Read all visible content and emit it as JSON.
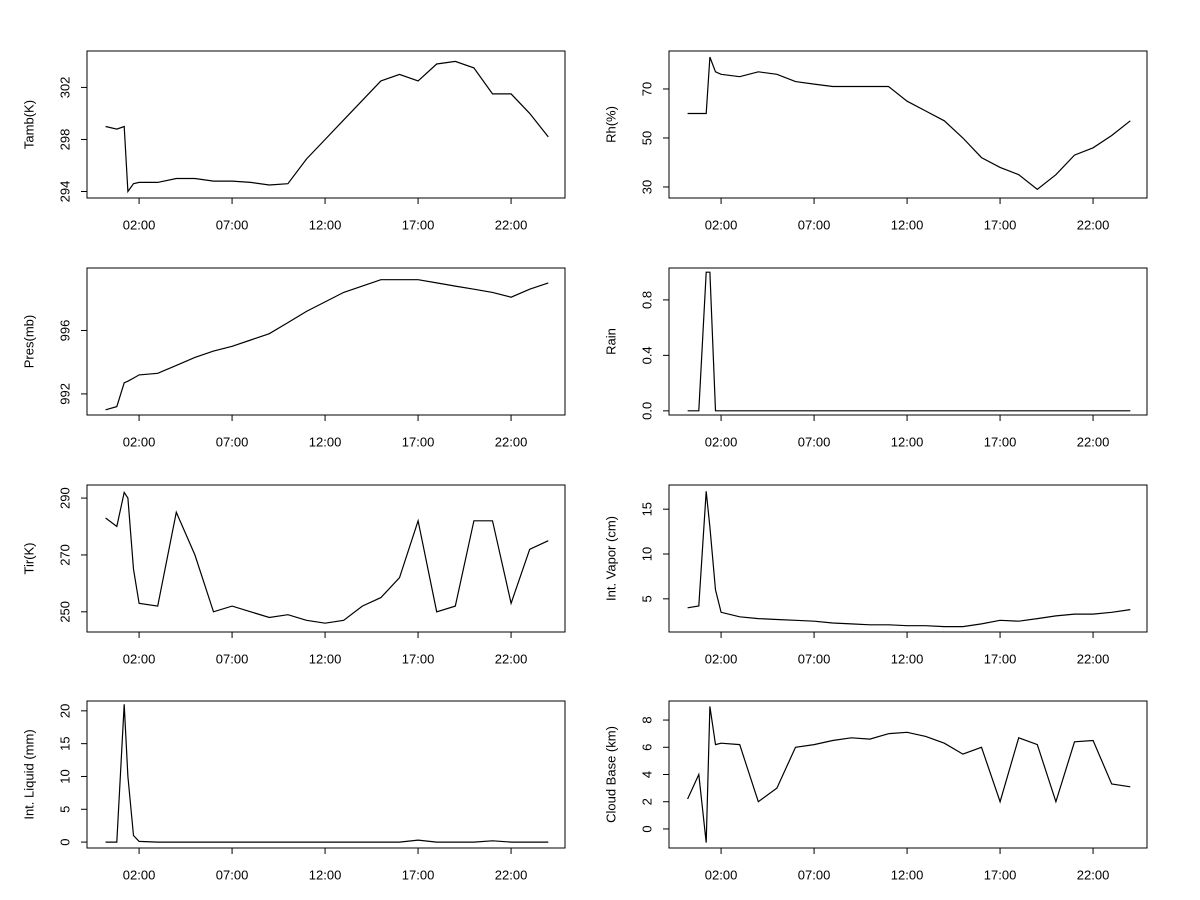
{
  "chart_data": [
    {
      "type": "line",
      "ylabel": "Tamb(K)",
      "color": "#000000",
      "x": [
        0.2,
        0.8,
        1.2,
        1.4,
        1.7,
        2,
        3,
        4,
        5,
        6,
        7,
        8,
        9,
        10,
        11,
        12,
        13,
        14,
        15,
        16,
        17,
        18,
        19,
        20,
        21,
        22,
        23,
        24
      ],
      "values": [
        299,
        298.8,
        299,
        294,
        294.6,
        294.7,
        294.7,
        295,
        295,
        294.8,
        294.8,
        294.7,
        294.5,
        294.6,
        296.5,
        298,
        299.5,
        301,
        302.5,
        303,
        302.5,
        303.8,
        304,
        303.5,
        301.5,
        301.5,
        300,
        298.2
      ],
      "xlim": [
        -0.8,
        24.9
      ],
      "ylim": [
        293.5,
        304.8
      ],
      "xticks": [
        {
          "value": 2,
          "label": "02:00"
        },
        {
          "value": 7,
          "label": "07:00"
        },
        {
          "value": 12,
          "label": "12:00"
        },
        {
          "value": 17,
          "label": "17:00"
        },
        {
          "value": 22,
          "label": "22:00"
        }
      ],
      "yticks": [
        294,
        298,
        302
      ]
    },
    {
      "type": "line",
      "ylabel": "Rh(%)",
      "color": "#000000",
      "x": [
        0.2,
        0.8,
        1.2,
        1.4,
        1.7,
        2,
        3,
        4,
        5,
        6,
        7,
        8,
        9,
        10,
        11,
        12,
        13,
        14,
        15,
        16,
        17,
        18,
        19,
        20,
        21,
        22,
        23,
        24
      ],
      "values": [
        60,
        60,
        60,
        83,
        77,
        76,
        75,
        77,
        76,
        73,
        72,
        71,
        71,
        71,
        71,
        65,
        61,
        57,
        50,
        42,
        38,
        35,
        29,
        35,
        43,
        46,
        51,
        57
      ],
      "xlim": [
        -0.8,
        24.9
      ],
      "ylim": [
        25.5,
        85.5
      ],
      "xticks": [
        {
          "value": 2,
          "label": "02:00"
        },
        {
          "value": 7,
          "label": "07:00"
        },
        {
          "value": 12,
          "label": "12:00"
        },
        {
          "value": 17,
          "label": "17:00"
        },
        {
          "value": 22,
          "label": "22:00"
        }
      ],
      "yticks": [
        30,
        50,
        70
      ]
    },
    {
      "type": "line",
      "ylabel": "Pres(mb)",
      "color": "#000000",
      "x": [
        0.2,
        0.8,
        1.2,
        1.4,
        1.7,
        2,
        3,
        4,
        5,
        6,
        7,
        8,
        9,
        10,
        11,
        12,
        13,
        14,
        15,
        16,
        17,
        18,
        19,
        20,
        21,
        22,
        23,
        24
      ],
      "values": [
        991,
        991.2,
        992.7,
        992.8,
        993,
        993.2,
        993.3,
        993.8,
        994.3,
        994.7,
        995,
        995.4,
        995.8,
        996.5,
        997.2,
        997.8,
        998.4,
        998.8,
        999.2,
        999.2,
        999.2,
        999,
        998.8,
        998.6,
        998.4,
        998.1,
        998.6,
        999
      ],
      "xlim": [
        -0.8,
        24.9
      ],
      "ylim": [
        990.67,
        999.94
      ],
      "xticks": [
        {
          "value": 2,
          "label": "02:00"
        },
        {
          "value": 7,
          "label": "07:00"
        },
        {
          "value": 12,
          "label": "12:00"
        },
        {
          "value": 17,
          "label": "17:00"
        },
        {
          "value": 22,
          "label": "22:00"
        }
      ],
      "yticks": [
        992,
        996
      ]
    },
    {
      "type": "line",
      "ylabel": "Rain",
      "color": "#000000",
      "x": [
        0.2,
        0.8,
        1.2,
        1.4,
        1.7,
        2,
        3,
        4,
        5,
        6,
        7,
        8,
        9,
        10,
        11,
        12,
        13,
        14,
        15,
        16,
        17,
        18,
        19,
        20,
        21,
        22,
        23,
        24
      ],
      "values": [
        0,
        0,
        1,
        1,
        0,
        0,
        0,
        0,
        0,
        0,
        0,
        0,
        0,
        0,
        0,
        0,
        0,
        0,
        0,
        0,
        0,
        0,
        0,
        0,
        0,
        0,
        0,
        0
      ],
      "xlim": [
        -0.8,
        24.9
      ],
      "ylim": [
        -0.03,
        1.03
      ],
      "xticks": [
        {
          "value": 2,
          "label": "02:00"
        },
        {
          "value": 7,
          "label": "07:00"
        },
        {
          "value": 12,
          "label": "12:00"
        },
        {
          "value": 17,
          "label": "17:00"
        },
        {
          "value": 22,
          "label": "22:00"
        }
      ],
      "yticks": [
        {
          "value": 0,
          "label": "0.0"
        },
        {
          "value": 0.4,
          "label": "0.4"
        },
        {
          "value": 0.8,
          "label": "0.8"
        }
      ]
    },
    {
      "type": "line",
      "ylabel": "Tir(K)",
      "color": "#000000",
      "x": [
        0.2,
        0.8,
        1.2,
        1.4,
        1.7,
        2,
        3,
        4,
        5,
        6,
        7,
        8,
        9,
        10,
        11,
        12,
        13,
        14,
        15,
        16,
        17,
        18,
        19,
        20,
        21,
        22,
        23,
        24
      ],
      "values": [
        283,
        280,
        292,
        290,
        265,
        253,
        252,
        285,
        270,
        250,
        252,
        250,
        248,
        249,
        247,
        246,
        247,
        252,
        255,
        262,
        282,
        250,
        252,
        282,
        282,
        253,
        272,
        275
      ],
      "xlim": [
        -0.8,
        24.9
      ],
      "ylim": [
        242.9,
        294.6
      ],
      "xticks": [
        {
          "value": 2,
          "label": "02:00"
        },
        {
          "value": 7,
          "label": "07:00"
        },
        {
          "value": 12,
          "label": "12:00"
        },
        {
          "value": 17,
          "label": "17:00"
        },
        {
          "value": 22,
          "label": "22:00"
        }
      ],
      "yticks": [
        250,
        270,
        290
      ]
    },
    {
      "type": "line",
      "ylabel": "Int. Vapor (cm)",
      "color": "#000000",
      "x": [
        0.2,
        0.8,
        1.2,
        1.4,
        1.7,
        2,
        3,
        4,
        5,
        6,
        7,
        8,
        9,
        10,
        11,
        12,
        13,
        14,
        15,
        16,
        17,
        18,
        19,
        20,
        21,
        22,
        23,
        24
      ],
      "values": [
        4,
        4.2,
        17,
        13,
        6,
        3.5,
        3,
        2.8,
        2.7,
        2.6,
        2.5,
        2.3,
        2.2,
        2.1,
        2.1,
        2,
        2,
        1.9,
        1.9,
        2.2,
        2.6,
        2.5,
        2.8,
        3.1,
        3.3,
        3.3,
        3.5,
        3.8
      ],
      "xlim": [
        -0.8,
        24.9
      ],
      "ylim": [
        1.3,
        17.7
      ],
      "xticks": [
        {
          "value": 2,
          "label": "02:00"
        },
        {
          "value": 7,
          "label": "07:00"
        },
        {
          "value": 12,
          "label": "12:00"
        },
        {
          "value": 17,
          "label": "17:00"
        },
        {
          "value": 22,
          "label": "22:00"
        }
      ],
      "yticks": [
        5,
        10,
        15
      ]
    },
    {
      "type": "line",
      "ylabel": "Int. Liquid (mm)",
      "color": "#000000",
      "x": [
        0.2,
        0.8,
        1.2,
        1.4,
        1.7,
        2,
        3,
        4,
        5,
        6,
        7,
        8,
        9,
        10,
        11,
        12,
        13,
        14,
        15,
        16,
        17,
        18,
        19,
        20,
        21,
        22,
        23,
        24
      ],
      "values": [
        0,
        0,
        21,
        10,
        1,
        0.1,
        0,
        0,
        0,
        0,
        0,
        0,
        0,
        0,
        0,
        0,
        0,
        0,
        0,
        0,
        0.3,
        0,
        0,
        0,
        0.2,
        0,
        0,
        0
      ],
      "xlim": [
        -0.8,
        24.9
      ],
      "ylim": [
        -0.9,
        21.5
      ],
      "xticks": [
        {
          "value": 2,
          "label": "02:00"
        },
        {
          "value": 7,
          "label": "07:00"
        },
        {
          "value": 12,
          "label": "12:00"
        },
        {
          "value": 17,
          "label": "17:00"
        },
        {
          "value": 22,
          "label": "22:00"
        }
      ],
      "yticks": [
        0,
        5,
        10,
        15,
        20
      ]
    },
    {
      "type": "line",
      "ylabel": "Cloud Base (km)",
      "color": "#000000",
      "x": [
        0.2,
        0.8,
        1.2,
        1.4,
        1.7,
        2,
        3,
        4,
        5,
        6,
        7,
        8,
        9,
        10,
        11,
        12,
        13,
        14,
        15,
        16,
        17,
        18,
        19,
        20,
        21,
        22,
        23,
        24
      ],
      "values": [
        2.2,
        4,
        -1,
        9,
        6.2,
        6.3,
        6.2,
        2,
        3,
        6,
        6.2,
        6.5,
        6.7,
        6.6,
        7,
        7.1,
        6.8,
        6.3,
        5.5,
        6,
        2,
        6.7,
        6.2,
        2,
        6.4,
        6.5,
        3.3,
        3.1
      ],
      "xlim": [
        -0.8,
        24.9
      ],
      "ylim": [
        -1.4,
        9.4
      ],
      "xticks": [
        {
          "value": 2,
          "label": "02:00"
        },
        {
          "value": 7,
          "label": "07:00"
        },
        {
          "value": 12,
          "label": "12:00"
        },
        {
          "value": 17,
          "label": "17:00"
        },
        {
          "value": 22,
          "label": "22:00"
        }
      ],
      "yticks": [
        0,
        2,
        4,
        6,
        8
      ]
    }
  ]
}
